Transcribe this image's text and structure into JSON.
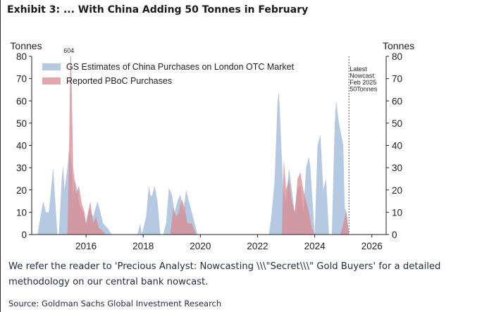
{
  "header": {
    "title": "Exhibit 3: ... With China Adding 50 Tonnes in February"
  },
  "footer": {
    "note": "We refer the reader to 'Precious Analyst: Nowcasting \\\\\\\"Secret\\\\\\\" Gold Buyers' for a detailed methodology on our central bank nowcast.",
    "source": "Source: Goldman Sachs Global Investment Research"
  },
  "colors": {
    "gs": "#a9bfdd",
    "pboc": "#d9888d",
    "axis": "#222222"
  },
  "chart_data": {
    "type": "area",
    "ylabel_left": "Tonnes",
    "ylabel_right": "Tonnes",
    "ylim": [
      0,
      80
    ],
    "yticks": [
      0,
      10,
      20,
      30,
      40,
      50,
      60,
      70,
      80
    ],
    "xlim": [
      2014.1,
      2026.5
    ],
    "xticks": [
      2016,
      2018,
      2020,
      2022,
      2024,
      2026
    ],
    "xtick_labels": [
      "2016",
      "2018",
      "2020",
      "2022",
      "2024",
      "2026"
    ],
    "legend": "top-left",
    "series": [
      {
        "name": "GS Estimates of China Purchases on London OTC Market",
        "color": "#a9bfdd",
        "x": [
          2014.3,
          2014.5,
          2014.6,
          2014.7,
          2014.85,
          2015.0,
          2015.05,
          2015.15,
          2015.2,
          2015.25,
          2015.35,
          2015.4,
          2015.5,
          2015.55,
          2015.6,
          2015.7,
          2015.75,
          2015.8,
          2015.9,
          2016.0,
          2016.1,
          2016.25,
          2016.4,
          2016.5,
          2016.6,
          2016.75,
          2016.9,
          2017.0,
          2017.8,
          2017.9,
          2017.95,
          2018.1,
          2018.2,
          2018.25,
          2018.3,
          2018.4,
          2018.5,
          2018.6,
          2018.7,
          2018.8,
          2018.9,
          2019.0,
          2019.1,
          2019.2,
          2019.3,
          2019.4,
          2019.5,
          2019.6,
          2019.7,
          2019.8,
          2019.9,
          2020.0,
          2020.1,
          2020.2,
          2022.4,
          2022.5,
          2022.6,
          2022.7,
          2022.75,
          2022.85,
          2022.9,
          2023.0,
          2023.1,
          2023.2,
          2023.3,
          2023.4,
          2023.5,
          2023.6,
          2023.7,
          2023.8,
          2023.85,
          2023.9,
          2024.0,
          2024.1,
          2024.2,
          2024.3,
          2024.4,
          2024.5,
          2024.6,
          2024.7,
          2024.75,
          2024.85,
          2025.0,
          2025.05,
          2025.12,
          2025.2
        ],
        "values": [
          0,
          15,
          10,
          10,
          30,
          0,
          0,
          25,
          31,
          20,
          30,
          38,
          30,
          15,
          25,
          20,
          15,
          12,
          10,
          5,
          12,
          8,
          15,
          10,
          5,
          3,
          0,
          0,
          0,
          5,
          0,
          8,
          22,
          18,
          17,
          22,
          15,
          0,
          0,
          5,
          21,
          18,
          10,
          15,
          18,
          10,
          20,
          15,
          10,
          5,
          0,
          0,
          0,
          0,
          0,
          10,
          25,
          60,
          64,
          35,
          20,
          15,
          30,
          20,
          10,
          20,
          22,
          10,
          30,
          35,
          30,
          20,
          0,
          40,
          45,
          20,
          25,
          0,
          0,
          50,
          60,
          50,
          40,
          12,
          10,
          0
        ]
      },
      {
        "name": "Reported PBoC Purchases",
        "color": "#d9888d",
        "label_annotation": "604",
        "x": [
          2015.35,
          2015.4,
          2015.45,
          2015.48,
          2015.55,
          2015.65,
          2015.75,
          2015.85,
          2015.95,
          2016.0,
          2016.05,
          2016.15,
          2016.25,
          2016.35,
          2016.45,
          2016.55,
          2016.7,
          2016.85,
          2018.95,
          2019.05,
          2019.15,
          2019.25,
          2019.35,
          2019.45,
          2019.55,
          2019.7,
          2019.85,
          2022.85,
          2022.92,
          2023.0,
          2023.1,
          2023.2,
          2023.3,
          2023.4,
          2023.5,
          2023.6,
          2023.7,
          2023.8,
          2023.9,
          2024.0,
          2024.1,
          2024.2,
          2024.3,
          2024.9,
          2025.0,
          2025.1,
          2025.2
        ],
        "values": [
          0,
          30,
          80,
          80,
          30,
          18,
          22,
          14,
          10,
          5,
          8,
          15,
          5,
          8,
          3,
          2,
          0,
          0,
          0,
          12,
          8,
          10,
          16,
          12,
          5,
          5,
          0,
          0,
          34,
          20,
          25,
          15,
          10,
          25,
          28,
          20,
          15,
          10,
          3,
          0,
          0,
          0,
          0,
          0,
          5,
          10,
          0
        ]
      }
    ],
    "annotations": [
      {
        "text": [
          "Latest",
          "Nowcast:",
          "Feb 2025",
          "50Tonnes"
        ],
        "x": 2025.2
      }
    ]
  }
}
